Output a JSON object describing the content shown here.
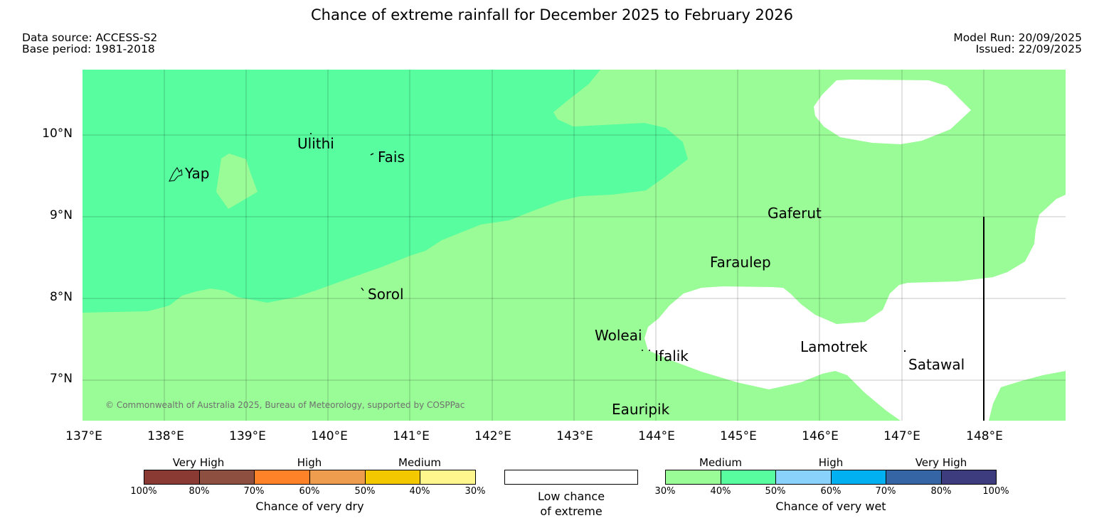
{
  "title": "Chance of extreme rainfall for December 2025 to February 2026",
  "data_source": "Data source: ACCESS-S2",
  "base_period": "Base period: 1981-2018",
  "model_run": "Model Run: 20/09/2025",
  "issued": "Issued: 22/09/2025",
  "copyright": "© Commonwealth of Australia 2025, Bureau of Meteorology, supported by COSPPac",
  "lat_labels": [
    "10°N",
    "9°N",
    "8°N",
    "7°N"
  ],
  "lon_labels": [
    "137°E",
    "138°E",
    "139°E",
    "140°E",
    "141°E",
    "142°E",
    "143°E",
    "144°E",
    "145°E",
    "146°E",
    "147°E",
    "148°E"
  ],
  "places": {
    "yap": "Yap",
    "ulithi": "Ulithi",
    "fais": "Fais",
    "sorol": "Sorol",
    "gaferut": "Gaferut",
    "faraulep": "Faraulep",
    "woleai": "Woleai",
    "ifalik": "Ifalik",
    "lamotrek": "Lamotrek",
    "satawal": "Satawal",
    "eauripik": "Eauripik"
  },
  "map_colors": {
    "medium_wet": "#9afc96",
    "high_wet_40_50": "#58fd9f",
    "low_chance": "#ffffff"
  },
  "legend": {
    "dry": {
      "categories": [
        "Very High",
        "High",
        "Medium"
      ],
      "ticks": [
        "100%",
        "80%",
        "70%",
        "60%",
        "50%",
        "40%",
        "30%"
      ],
      "colors": [
        "#8b3a33",
        "#8d4f3f",
        "#fe8328",
        "#ee9c4e",
        "#f3c800",
        "#fff68e"
      ],
      "caption": "Chance of very dry"
    },
    "low": {
      "line1": "Low chance",
      "line2": "of extreme"
    },
    "wet": {
      "categories": [
        "Medium",
        "High",
        "Very High"
      ],
      "ticks": [
        "30%",
        "40%",
        "50%",
        "60%",
        "70%",
        "80%",
        "100%"
      ],
      "colors": [
        "#9afc96",
        "#58fd9f",
        "#89d2fb",
        "#00b0f0",
        "#3665a5",
        "#3c3c7e"
      ],
      "caption": "Chance of very wet"
    }
  }
}
